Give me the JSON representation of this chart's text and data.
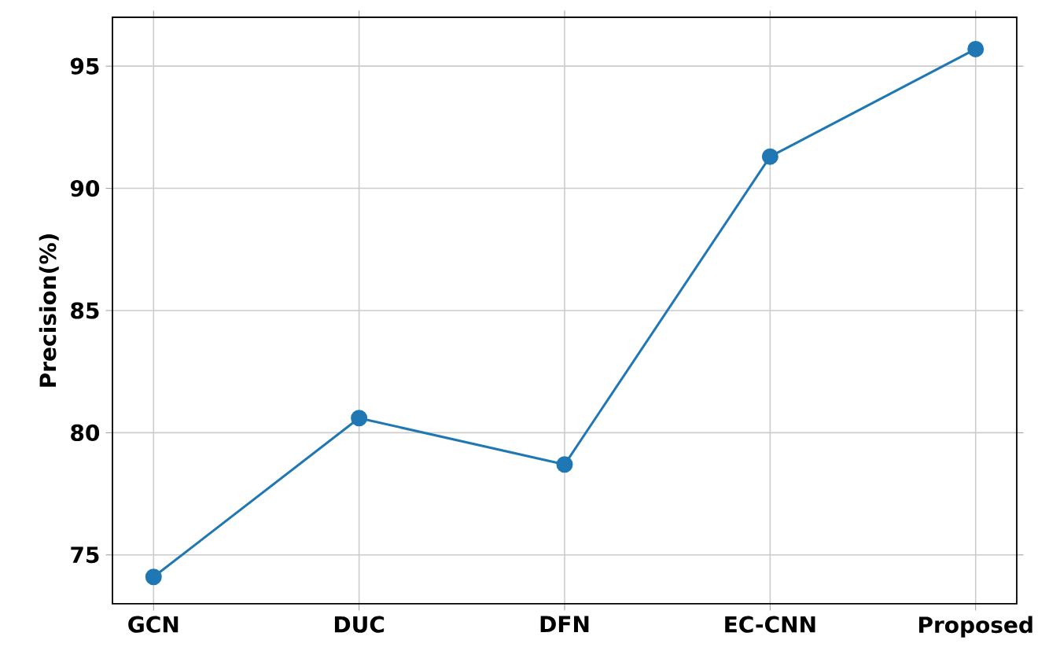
{
  "chart_data": {
    "type": "line",
    "ylabel": "Precision(%)",
    "categories": [
      "GCN",
      "DUC",
      "DFN",
      "EC-CNN",
      "Proposed"
    ],
    "series": [
      {
        "color": "#1f77b4",
        "values": [
          74.1,
          80.6,
          78.7,
          91.3,
          95.7
        ]
      }
    ],
    "ylim": [
      73,
      97
    ],
    "yticks": [
      75,
      80,
      85,
      90,
      95
    ],
    "grid": true,
    "marker": "circle",
    "line_style": "solid"
  }
}
